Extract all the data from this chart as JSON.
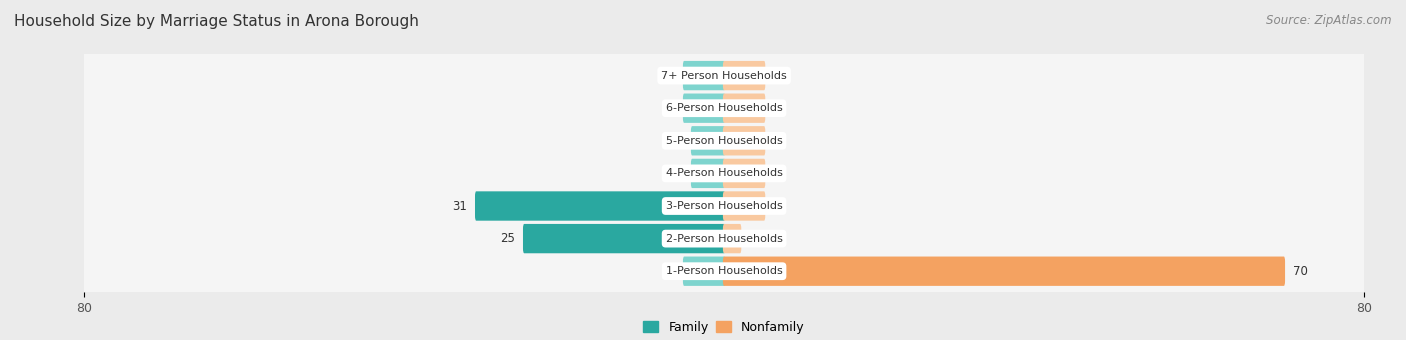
{
  "title": "Household Size by Marriage Status in Arona Borough",
  "source": "Source: ZipAtlas.com",
  "categories": [
    "7+ Person Households",
    "6-Person Households",
    "5-Person Households",
    "4-Person Households",
    "3-Person Households",
    "2-Person Households",
    "1-Person Households"
  ],
  "family_values": [
    0,
    0,
    4,
    4,
    31,
    25,
    0
  ],
  "nonfamily_values": [
    0,
    0,
    0,
    0,
    0,
    2,
    70
  ],
  "family_color_large": "#2aa8a0",
  "family_color_small": "#7ed4ce",
  "nonfamily_color_large": "#f4a261",
  "nonfamily_color_small": "#f9c9a0",
  "axis_limit": 80,
  "stub_size": 5,
  "background_color": "#ebebeb",
  "row_bg_color": "#f5f5f5",
  "title_fontsize": 11,
  "label_fontsize": 8.5,
  "tick_fontsize": 9,
  "source_fontsize": 8.5,
  "legend_fontsize": 9
}
